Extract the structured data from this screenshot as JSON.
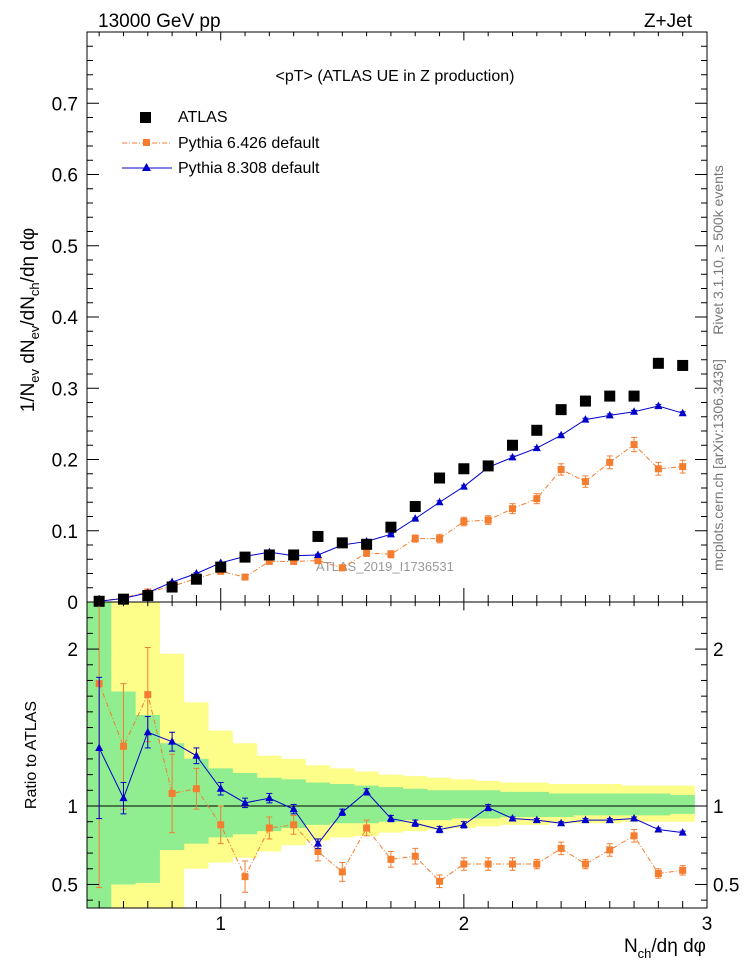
{
  "header": {
    "left": "13000 GeV pp",
    "right": "Z+Jet"
  },
  "side_text": {
    "rivet": "Rivet 3.1.10, ≥ 500k events",
    "mcplots": "mcplots.cern.ch [arXiv:1306.3436]"
  },
  "colors": {
    "atlas": "#000000",
    "py6": "#f47d30",
    "py8": "#0000cc",
    "band_inner": "#90ee90",
    "band_outer": "#fdfd8a"
  },
  "chart_data": [
    {
      "type": "scatter",
      "title": "<pT> (ATLAS UE in Z production)",
      "ylabel": "1/N_ev dN_ev/dN_ch/dη dφ",
      "xlim": [
        0.45,
        3.0
      ],
      "ylim": [
        0,
        0.8
      ],
      "yticks": [
        "0",
        "0.1",
        "0.2",
        "0.3",
        "0.4",
        "0.5",
        "0.6",
        "0.7"
      ],
      "watermark": "ATLAS_2019_I1736531",
      "legend_position": "top-left",
      "x": [
        0.5,
        0.6,
        0.7,
        0.8,
        0.9,
        1.0,
        1.1,
        1.2,
        1.3,
        1.4,
        1.5,
        1.6,
        1.7,
        1.8,
        1.9,
        2.0,
        2.1,
        2.2,
        2.3,
        2.4,
        2.5,
        2.6,
        2.7,
        2.8,
        2.9
      ],
      "series": [
        {
          "name": "ATLAS",
          "values": [
            0.001,
            0.004,
            0.009,
            0.021,
            0.032,
            0.049,
            0.063,
            0.066,
            0.066,
            0.092,
            0.083,
            0.081,
            0.105,
            0.134,
            0.174,
            0.187,
            0.191,
            0.22,
            0.241,
            0.27,
            0.282,
            0.289,
            0.289,
            0.335,
            0.332
          ]
        },
        {
          "name": "Pythia 6.426 default",
          "values": [
            0.001,
            0.006,
            0.014,
            0.022,
            0.033,
            0.043,
            0.035,
            0.057,
            0.057,
            0.058,
            0.048,
            0.069,
            0.067,
            0.089,
            0.089,
            0.113,
            0.115,
            0.131,
            0.145,
            0.186,
            0.169,
            0.196,
            0.221,
            0.187,
            0.19
          ],
          "errors": [
            0.001,
            0.002,
            0.002,
            0.003,
            0.003,
            0.003,
            0.003,
            0.004,
            0.004,
            0.004,
            0.004,
            0.005,
            0.005,
            0.005,
            0.006,
            0.006,
            0.006,
            0.007,
            0.007,
            0.008,
            0.008,
            0.009,
            0.01,
            0.009,
            0.009
          ]
        },
        {
          "name": "Pythia 8.308 default",
          "values": [
            0.001,
            0.005,
            0.013,
            0.028,
            0.04,
            0.055,
            0.064,
            0.07,
            0.065,
            0.066,
            0.08,
            0.085,
            0.095,
            0.117,
            0.14,
            0.162,
            0.189,
            0.203,
            0.216,
            0.234,
            0.256,
            0.262,
            0.267,
            0.275,
            0.265
          ],
          "errors": [
            0.001,
            0.001,
            0.001,
            0.001,
            0.001,
            0.001,
            0.001,
            0.001,
            0.001,
            0.001,
            0.001,
            0.001,
            0.001,
            0.001,
            0.002,
            0.002,
            0.002,
            0.002,
            0.002,
            0.002,
            0.002,
            0.002,
            0.002,
            0.002,
            0.002
          ]
        }
      ]
    },
    {
      "type": "scatter",
      "ylabel": "Ratio to ATLAS",
      "xlabel": "N_ch/dη dφ",
      "xlim": [
        0.45,
        3.0
      ],
      "ylim": [
        0.35,
        2.3
      ],
      "yticks": [
        "0.5",
        "1",
        "2"
      ],
      "xticks": [
        "1",
        "2",
        "3"
      ],
      "x": [
        0.5,
        0.6,
        0.7,
        0.8,
        0.9,
        1.0,
        1.1,
        1.2,
        1.3,
        1.4,
        1.5,
        1.6,
        1.7,
        1.8,
        1.9,
        2.0,
        2.1,
        2.2,
        2.3,
        2.4,
        2.5,
        2.6,
        2.7,
        2.8,
        2.9
      ],
      "band_inner": [
        [
          0.35,
          2.3
        ],
        [
          0.5,
          1.73
        ],
        [
          0.51,
          1.58
        ],
        [
          0.72,
          1.4
        ],
        [
          0.76,
          1.3
        ],
        [
          0.8,
          1.24
        ],
        [
          0.82,
          1.21
        ],
        [
          0.84,
          1.18
        ],
        [
          0.86,
          1.17
        ],
        [
          0.88,
          1.15
        ],
        [
          0.89,
          1.14
        ],
        [
          0.89,
          1.13
        ],
        [
          0.9,
          1.12
        ],
        [
          0.91,
          1.11
        ],
        [
          0.91,
          1.1
        ],
        [
          0.92,
          1.1
        ],
        [
          0.92,
          1.1
        ],
        [
          0.93,
          1.09
        ],
        [
          0.93,
          1.09
        ],
        [
          0.93,
          1.08
        ],
        [
          0.94,
          1.08
        ],
        [
          0.94,
          1.08
        ],
        [
          0.94,
          1.08
        ],
        [
          0.94,
          1.08
        ],
        [
          0.95,
          1.07
        ]
      ],
      "band_outer": [
        [
          0.35,
          2.3
        ],
        [
          0.35,
          2.3
        ],
        [
          0.35,
          2.3
        ],
        [
          0.35,
          1.97
        ],
        [
          0.6,
          1.66
        ],
        [
          0.64,
          1.48
        ],
        [
          0.67,
          1.4
        ],
        [
          0.71,
          1.32
        ],
        [
          0.75,
          1.3
        ],
        [
          0.78,
          1.26
        ],
        [
          0.8,
          1.24
        ],
        [
          0.81,
          1.22
        ],
        [
          0.83,
          1.2
        ],
        [
          0.84,
          1.19
        ],
        [
          0.85,
          1.18
        ],
        [
          0.86,
          1.17
        ],
        [
          0.87,
          1.16
        ],
        [
          0.88,
          1.15
        ],
        [
          0.88,
          1.15
        ],
        [
          0.89,
          1.14
        ],
        [
          0.89,
          1.14
        ],
        [
          0.89,
          1.14
        ],
        [
          0.9,
          1.13
        ],
        [
          0.9,
          1.13
        ],
        [
          0.9,
          1.13
        ]
      ],
      "series": [
        {
          "name": "Pythia 6.426 default",
          "values": [
            1.78,
            1.38,
            1.71,
            1.08,
            1.11,
            0.88,
            0.55,
            0.86,
            0.88,
            0.71,
            0.58,
            0.86,
            0.66,
            0.68,
            0.52,
            0.63,
            0.63,
            0.63,
            0.63,
            0.73,
            0.63,
            0.72,
            0.81,
            0.57,
            0.59
          ],
          "errors": [
            1.3,
            0.4,
            0.3,
            0.25,
            0.13,
            0.12,
            0.1,
            0.07,
            0.06,
            0.06,
            0.06,
            0.05,
            0.05,
            0.05,
            0.04,
            0.04,
            0.04,
            0.04,
            0.03,
            0.04,
            0.03,
            0.04,
            0.04,
            0.03,
            0.03
          ]
        },
        {
          "name": "Pythia 8.308 default",
          "values": [
            1.37,
            1.05,
            1.47,
            1.41,
            1.32,
            1.11,
            1.02,
            1.05,
            0.98,
            0.76,
            0.96,
            1.09,
            0.92,
            0.89,
            0.85,
            0.88,
            0.99,
            0.92,
            0.91,
            0.89,
            0.91,
            0.91,
            0.92,
            0.85,
            0.83
          ],
          "errors": [
            0.45,
            0.1,
            0.1,
            0.06,
            0.05,
            0.04,
            0.03,
            0.03,
            0.03,
            0.03,
            0.02,
            0.02,
            0.02,
            0.02,
            0.02,
            0.02,
            0.02,
            0.01,
            0.01,
            0.01,
            0.01,
            0.01,
            0.01,
            0.01,
            0.01
          ]
        }
      ]
    }
  ]
}
